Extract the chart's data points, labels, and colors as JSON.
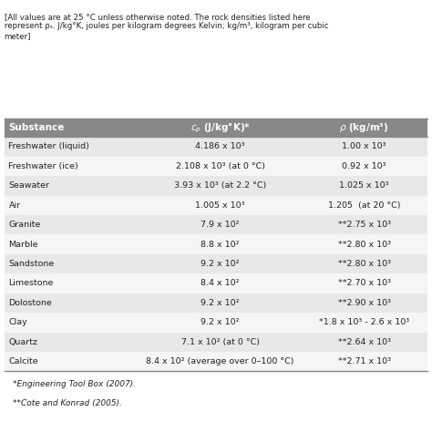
{
  "caption": "[All values are at 25 °C unless otherwise noted. The rock densities listed here\nrepresent ρₛ. J/kg°K, joules per kilogram degrees Kelvin; kg/m³, kilogram per cubic\nmeter]",
  "header": [
    "Substance",
    "c_p (J/kg°K)*",
    "ρ (kg/m³)"
  ],
  "rows": [
    [
      "Freshwater (liquid)",
      "4.186 x 10³",
      "1.00 x 10³"
    ],
    [
      "Freshwater (ice)",
      "2.108 x 10³ (at 0 °C)",
      "0.92 x 10³"
    ],
    [
      "Seawater",
      "3.93 x 10³ (at 2.2 °C)",
      "1.025 x 10³"
    ],
    [
      "Air",
      "1.005 x 10³",
      "1.205  (at 20 °C)"
    ],
    [
      "Granite",
      "7.9 x 10²",
      "**2.75 x 10³"
    ],
    [
      "Marble",
      "8.8 x 10²",
      "**2.80 x 10³"
    ],
    [
      "Sandstone",
      "9.2 x 10²",
      "**2.80 x 10³"
    ],
    [
      "Limestone",
      "8.4 x 10²",
      "**2.70 x 10³"
    ],
    [
      "Dolostone",
      "9.2 x 10²",
      "**2.90 x 10³"
    ],
    [
      "Clay",
      "9.2 x 10²",
      "*1.8 x 10³ - 2.6 x 10³"
    ],
    [
      "Quartz",
      "7.1 x 10² (at 0 °C)",
      "**2.64 x 10³"
    ],
    [
      "Calcite",
      "8.4 x 10² (average over 0–100 °C)",
      "**2.71 x 10³"
    ]
  ],
  "footnotes": [
    "*Engineering Tool Box (2007).",
    "**Cote and Konrad (2005)."
  ],
  "header_bg": "#888888",
  "header_fg": "#ffffff",
  "row_bg_even": "#e8e8e8",
  "row_bg_odd": "#f5f5f5",
  "table_border": "#888888",
  "fig_bg": "#ffffff"
}
